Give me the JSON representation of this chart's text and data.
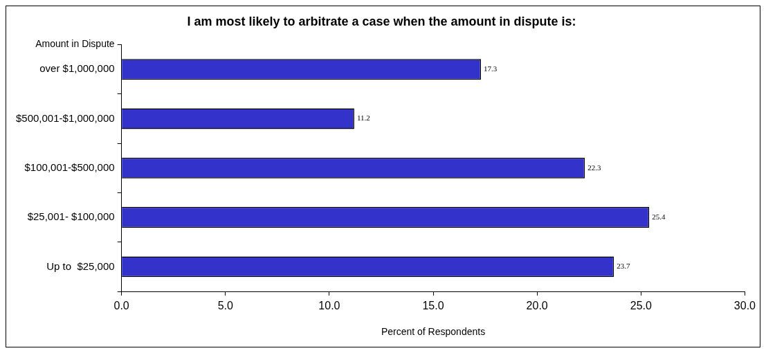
{
  "chart_data": {
    "type": "bar",
    "orientation": "horizontal",
    "title": "I am most likely to arbitrate a case when the amount in dispute is:",
    "xlabel": "Percent of Respondents",
    "ylabel": "Amount in Dispute",
    "categories": [
      "over $1,000,000",
      "$500,001-$1,000,000",
      "$100,001-$500,000",
      "$25,001- $100,000",
      "Up to  $25,000"
    ],
    "values": [
      17.3,
      11.2,
      22.3,
      25.4,
      23.7
    ],
    "color": "#3333cc",
    "xlim": [
      0,
      30
    ],
    "xticks": [
      {
        "value": 0,
        "label": "0.0"
      },
      {
        "value": 5,
        "label": "5.0"
      },
      {
        "value": 10,
        "label": "10.0"
      },
      {
        "value": 15,
        "label": "15.0"
      },
      {
        "value": 20,
        "label": "20.0"
      },
      {
        "value": 25,
        "label": "25.0"
      },
      {
        "value": 30,
        "label": "30.0"
      }
    ],
    "data_labels": true,
    "grid": false,
    "legend": false
  }
}
